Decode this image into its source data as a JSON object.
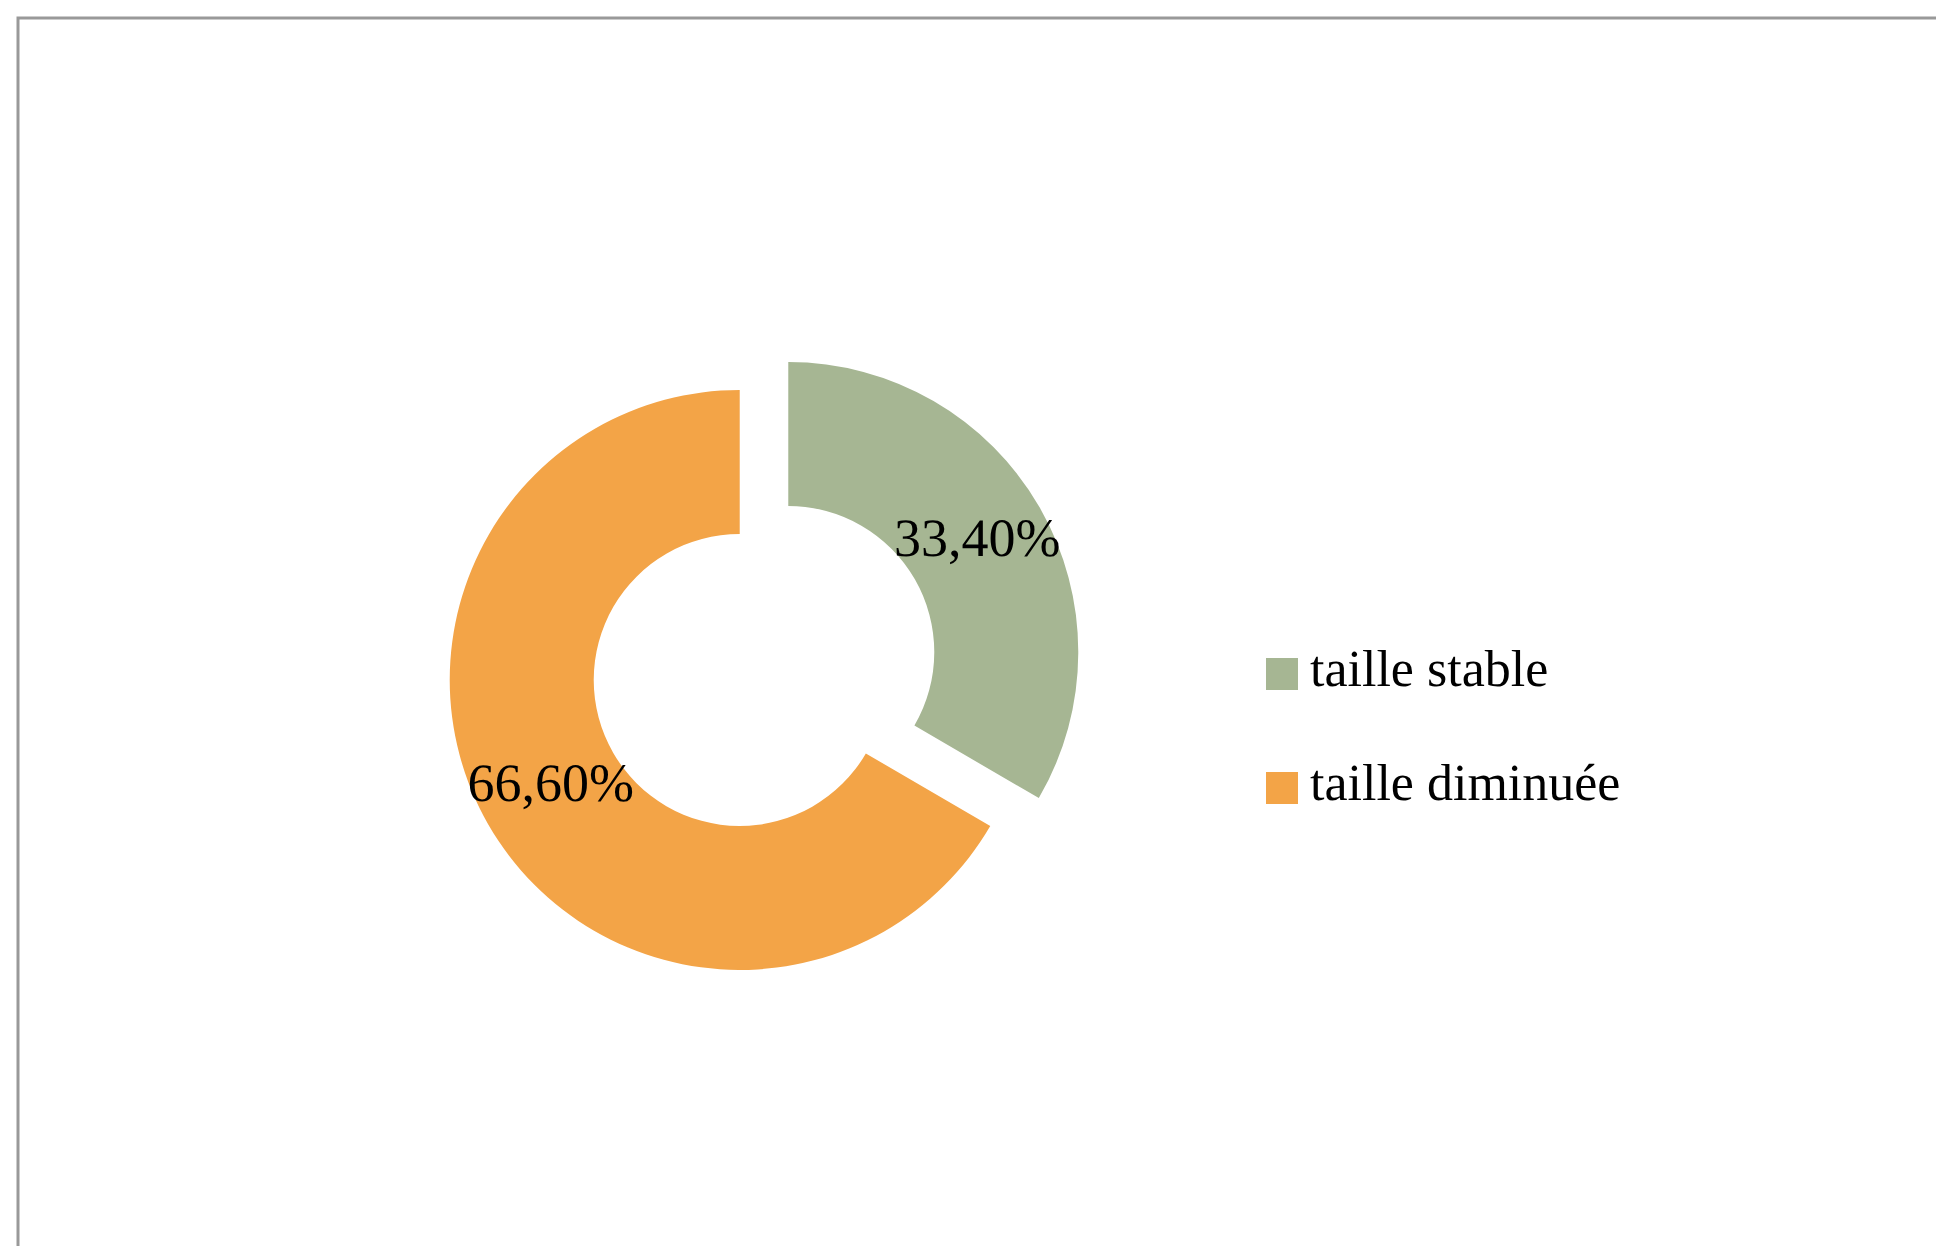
{
  "chart_data": {
    "type": "donut",
    "categories": [
      "taille stable",
      "taille diminuée"
    ],
    "values": [
      33.4,
      66.6
    ],
    "colors": [
      "#a6b693",
      "#f3a447"
    ],
    "value_labels": [
      "33,40%",
      "66,60%"
    ],
    "legend": "right"
  }
}
